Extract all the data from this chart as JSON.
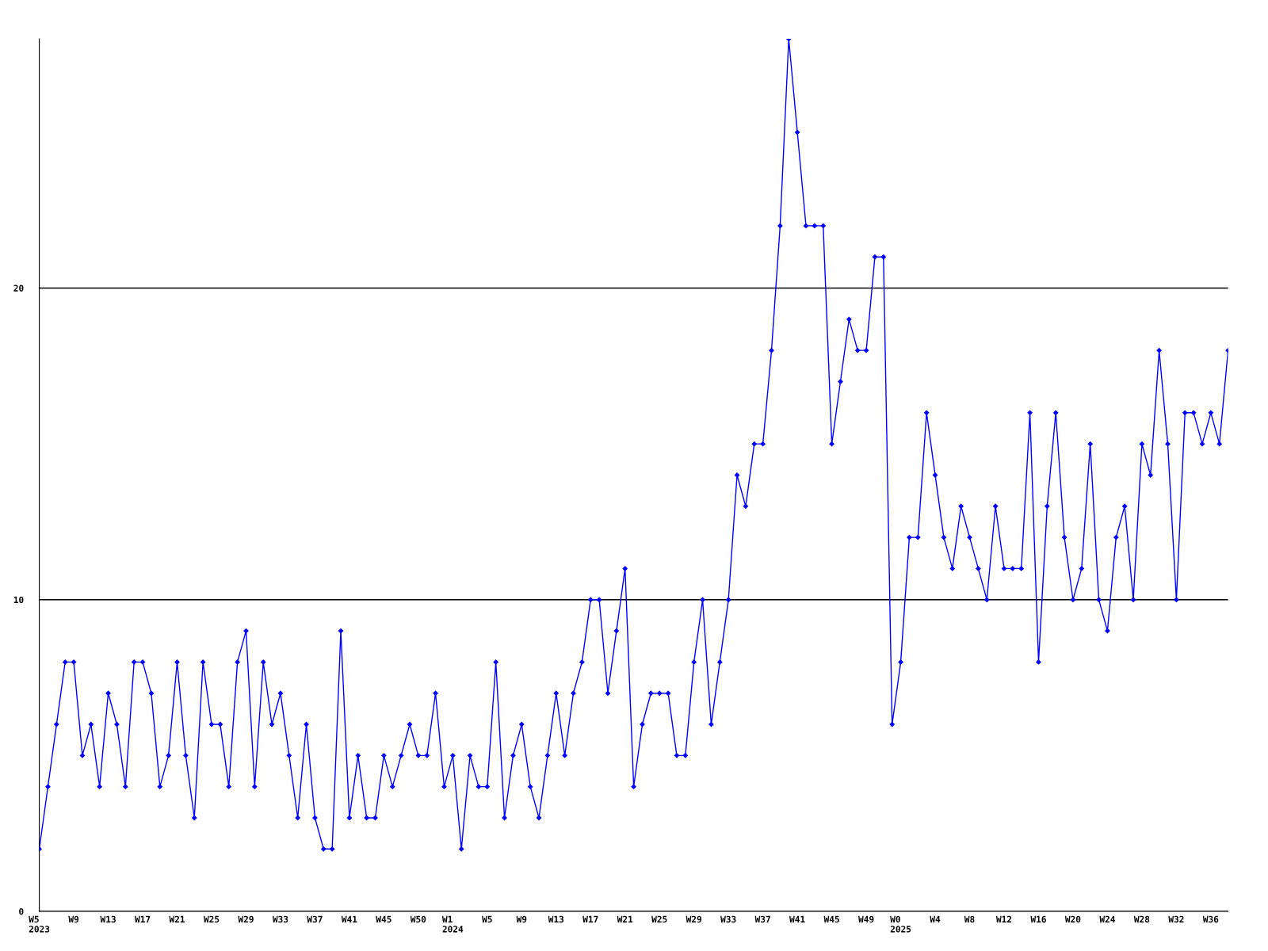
{
  "chart_data": {
    "type": "line",
    "categories": [
      "W5\n2023",
      null,
      null,
      null,
      "W9",
      null,
      null,
      null,
      "W13",
      null,
      null,
      null,
      "W17",
      null,
      null,
      null,
      "W21",
      null,
      null,
      null,
      "W25",
      null,
      null,
      null,
      "W29",
      null,
      null,
      null,
      "W33",
      null,
      null,
      null,
      "W37",
      null,
      null,
      null,
      "W41",
      null,
      null,
      null,
      "W45",
      null,
      null,
      null,
      "W50",
      null,
      null,
      null,
      "W1\n2024",
      null,
      null,
      null,
      "W5",
      null,
      null,
      null,
      "W9",
      null,
      null,
      null,
      "W13",
      null,
      null,
      null,
      "W17",
      null,
      null,
      null,
      "W21",
      null,
      null,
      null,
      "W25",
      null,
      null,
      null,
      "W29",
      null,
      null,
      null,
      "W33",
      null,
      null,
      null,
      "W37",
      null,
      null,
      null,
      "W41",
      null,
      null,
      null,
      "W45",
      null,
      null,
      null,
      "W49",
      null,
      null,
      null,
      "W0\n2025",
      null,
      null,
      null,
      "W4",
      null,
      null,
      null,
      "W8",
      null,
      null,
      null,
      "W12",
      null,
      null,
      null,
      "W16",
      null,
      null,
      null,
      "W20",
      null,
      null,
      null,
      "W24",
      null,
      null,
      null,
      "W28",
      null,
      null,
      null,
      "W32",
      null,
      null,
      null,
      "W36",
      null,
      null
    ],
    "series": [
      {
        "color": "#0000ff",
        "values": [
          2,
          4,
          6,
          8,
          8,
          5,
          6,
          4,
          7,
          6,
          4,
          8,
          8,
          7,
          4,
          5,
          8,
          5,
          3,
          8,
          6,
          6,
          4,
          8,
          9,
          4,
          8,
          6,
          7,
          5,
          3,
          6,
          3,
          2,
          2,
          9,
          3,
          5,
          3,
          3,
          5,
          4,
          5,
          6,
          5,
          5,
          7,
          4,
          5,
          2,
          5,
          4,
          4,
          8,
          3,
          5,
          6,
          4,
          3,
          5,
          7,
          5,
          7,
          8,
          10,
          10,
          7,
          9,
          11,
          4,
          6,
          7,
          7,
          7,
          5,
          5,
          8,
          10,
          6,
          8,
          10,
          14,
          13,
          15,
          15,
          18,
          22,
          28,
          25,
          22,
          22,
          22,
          15,
          17,
          19,
          18,
          18,
          21,
          21,
          6,
          8,
          12,
          12,
          16,
          14,
          12,
          11,
          13,
          12,
          11,
          10,
          13,
          11,
          11,
          11,
          16,
          8,
          13,
          16,
          12,
          10,
          11,
          15,
          10,
          9,
          12,
          13,
          10,
          15,
          14,
          18,
          15,
          10,
          16,
          16,
          15,
          16,
          15,
          18
        ]
      }
    ],
    "ylim": [
      0,
      28
    ],
    "yticks": [
      0,
      10,
      20
    ],
    "grid": "y",
    "marker": "diamond",
    "line_style": "solid"
  }
}
